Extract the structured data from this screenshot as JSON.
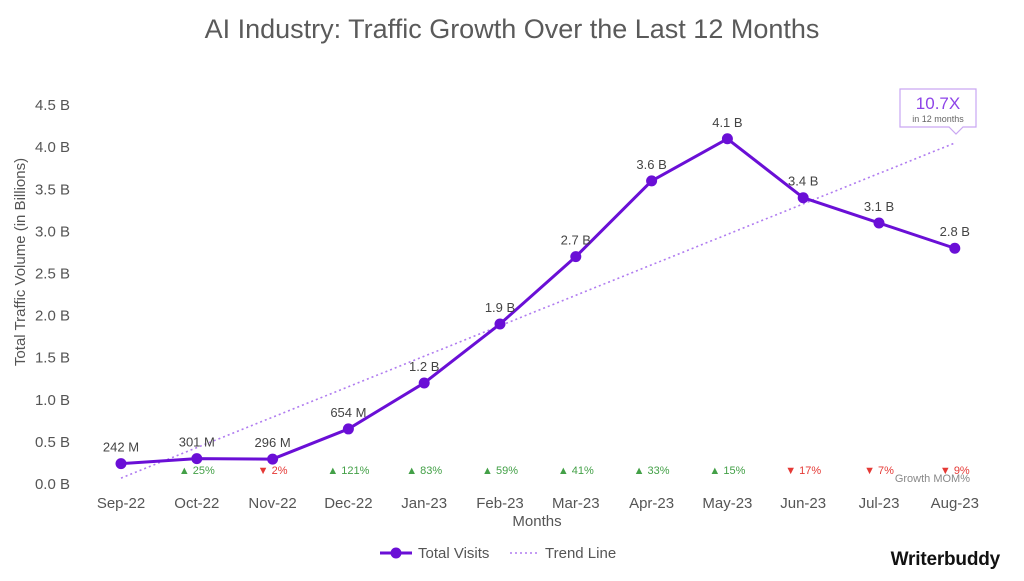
{
  "chart_data": {
    "type": "line",
    "title": "AI Industry: Traffic Growth Over the Last 12 Months",
    "xlabel": "Months",
    "ylabel": "Total Traffic Volume (in Billions)",
    "ylim": [
      0,
      4.5
    ],
    "yticks": [
      0,
      0.5,
      1.0,
      1.5,
      2.0,
      2.5,
      3.0,
      3.5,
      4.0,
      4.5
    ],
    "ytick_labels": [
      "0.0 B",
      "0.5 B",
      "1.0 B",
      "1.5 B",
      "2.0 B",
      "2.5 B",
      "3.0 B",
      "3.5 B",
      "4.0 B",
      "4.5 B"
    ],
    "grid": false,
    "categories": [
      "Sep-22",
      "Oct-22",
      "Nov-22",
      "Dec-22",
      "Jan-23",
      "Feb-23",
      "Mar-23",
      "Apr-23",
      "May-23",
      "Jun-23",
      "Jul-23",
      "Aug-23"
    ],
    "series": [
      {
        "name": "Total Visits",
        "color": "#6a0fd6",
        "values": [
          0.242,
          0.301,
          0.296,
          0.654,
          1.2,
          1.9,
          2.7,
          3.6,
          4.1,
          3.4,
          3.1,
          2.8
        ],
        "labels": [
          "242 M",
          "301 M",
          "296 M",
          "654 M",
          "1.2 B",
          "1.9 B",
          "2.7 B",
          "3.6 B",
          "4.1 B",
          "3.4 B",
          "3.1 B",
          "2.8 B"
        ]
      },
      {
        "name": "Trend Line",
        "color": "#b07cf0",
        "style": "dotted",
        "x_start": "Sep-22",
        "y_start": 0.07,
        "x_end": "Aug-23",
        "y_end": 4.05
      }
    ],
    "growth_label": "Growth MOM%",
    "growth_mom": [
      {
        "month": "Oct-22",
        "text": "25%",
        "direction": "up"
      },
      {
        "month": "Nov-22",
        "text": "2%",
        "direction": "down"
      },
      {
        "month": "Dec-22",
        "text": "121%",
        "direction": "up"
      },
      {
        "month": "Jan-23",
        "text": "83%",
        "direction": "up"
      },
      {
        "month": "Feb-23",
        "text": "59%",
        "direction": "up"
      },
      {
        "month": "Mar-23",
        "text": "41%",
        "direction": "up"
      },
      {
        "month": "Apr-23",
        "text": "33%",
        "direction": "up"
      },
      {
        "month": "May-23",
        "text": "15%",
        "direction": "up"
      },
      {
        "month": "Jun-23",
        "text": "17%",
        "direction": "down"
      },
      {
        "month": "Jul-23",
        "text": "7%",
        "direction": "down"
      },
      {
        "month": "Aug-23",
        "text": "9%",
        "direction": "down"
      }
    ],
    "up_color": "#43a047",
    "down_color": "#e53935",
    "callout": {
      "value": "10.7X",
      "subtext": "in 12 months",
      "color": "#8e44e8"
    },
    "legend_placement": "bottom-center"
  },
  "brand": {
    "logo_text": "Writerbuddy"
  }
}
